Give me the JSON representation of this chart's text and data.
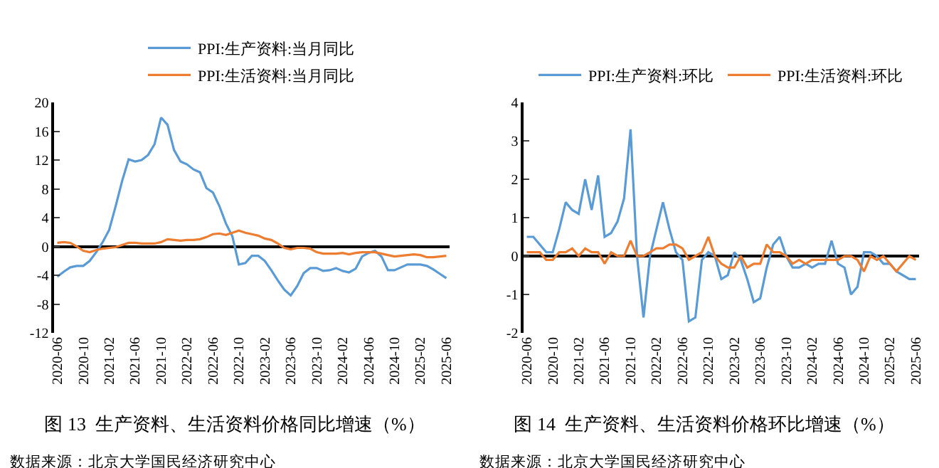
{
  "chart_data": [
    {
      "type": "line",
      "title": "图 13  生产资料、生活资料价格同比增速（%）",
      "annotations": [
        "数据来源：北京大学国民经济研究中心"
      ],
      "categories": [
        "2020-06",
        null,
        null,
        null,
        "2020-10",
        null,
        null,
        null,
        "2021-02",
        null,
        null,
        null,
        "2021-06",
        null,
        null,
        null,
        "2021-10",
        null,
        null,
        null,
        "2022-02",
        null,
        null,
        null,
        "2022-06",
        null,
        null,
        null,
        "2022-10",
        null,
        null,
        null,
        "2023-02",
        null,
        null,
        null,
        "2023-06",
        null,
        null,
        null,
        "2023-10",
        null,
        null,
        null,
        "2024-02",
        null,
        null,
        null,
        "2024-06",
        null,
        null,
        null,
        "2024-10",
        null,
        null,
        null,
        "2025-02",
        null,
        null,
        null,
        "2025-06"
      ],
      "ylim": [
        -12,
        20
      ],
      "yticks": [
        -12,
        -8,
        -4,
        0,
        4,
        8,
        12,
        16,
        20
      ],
      "legend": "top",
      "series": [
        {
          "name": "PPI:生产资料:当月同比",
          "color": "#5b9bd5",
          "values": [
            -4.2,
            -3.5,
            -2.9,
            -2.7,
            -2.7,
            -2.0,
            -0.8,
            0.6,
            2.3,
            5.6,
            9.1,
            12.1,
            11.8,
            12.0,
            12.7,
            14.2,
            17.9,
            16.9,
            13.4,
            11.8,
            11.4,
            10.7,
            10.3,
            8.1,
            7.5,
            5.6,
            3.2,
            1.4,
            -2.5,
            -2.3,
            -1.3,
            -1.3,
            -2.0,
            -3.3,
            -4.7,
            -6.0,
            -6.8,
            -5.5,
            -3.7,
            -3.0,
            -3.0,
            -3.4,
            -3.3,
            -3.0,
            -3.4,
            -3.6,
            -3.1,
            -1.4,
            -0.9,
            -0.6,
            -1.4,
            -3.3,
            -3.3,
            -2.9,
            -2.5,
            -2.5,
            -2.5,
            -2.7,
            -3.2,
            -3.8,
            -4.4
          ]
        },
        {
          "name": "PPI:生活资料:当月同比",
          "color": "#ed7d31",
          "values": [
            0.5,
            0.6,
            0.5,
            0.0,
            -0.6,
            -0.8,
            -0.5,
            -0.3,
            -0.2,
            -0.1,
            0.2,
            0.5,
            0.5,
            0.4,
            0.4,
            0.4,
            0.6,
            1.0,
            0.9,
            0.8,
            0.9,
            0.9,
            1.0,
            1.3,
            1.7,
            1.8,
            1.6,
            1.9,
            2.2,
            1.9,
            1.7,
            1.5,
            1.1,
            0.9,
            0.4,
            -0.2,
            -0.4,
            -0.2,
            -0.2,
            -0.3,
            -0.8,
            -1.0,
            -1.0,
            -1.0,
            -0.9,
            -1.1,
            -0.9,
            -0.8,
            -0.8,
            -0.8,
            -1.0,
            -1.2,
            -1.4,
            -1.3,
            -1.2,
            -1.1,
            -1.2,
            -1.5,
            -1.5,
            -1.4,
            -1.3
          ]
        }
      ]
    },
    {
      "type": "line",
      "title": "图 14  生产资料、生活资料价格环比增速（%）",
      "annotations": [
        "数据来源：北京大学国民经济研究中心"
      ],
      "categories": [
        "2020-06",
        null,
        null,
        null,
        "2020-10",
        null,
        null,
        null,
        "2021-02",
        null,
        null,
        null,
        "2021-06",
        null,
        null,
        null,
        "2021-10",
        null,
        null,
        null,
        "2022-02",
        null,
        null,
        null,
        "2022-06",
        null,
        null,
        null,
        "2022-10",
        null,
        null,
        null,
        "2023-02",
        null,
        null,
        null,
        "2023-06",
        null,
        null,
        null,
        "2023-10",
        null,
        null,
        null,
        "2024-02",
        null,
        null,
        null,
        "2024-06",
        null,
        null,
        null,
        "2024-10",
        null,
        null,
        null,
        "2025-02",
        null,
        null,
        null,
        "2025-06"
      ],
      "ylim": [
        -2,
        4
      ],
      "yticks": [
        -2,
        -1,
        0,
        1,
        2,
        3,
        4
      ],
      "legend": "top",
      "series": [
        {
          "name": "PPI:生产资料:环比",
          "color": "#5b9bd5",
          "values": [
            0.5,
            0.5,
            0.3,
            0.1,
            0.1,
            0.7,
            1.4,
            1.2,
            1.1,
            2.0,
            1.2,
            2.1,
            0.5,
            0.6,
            0.9,
            1.5,
            3.3,
            0.0,
            -1.6,
            0.0,
            0.7,
            1.4,
            0.7,
            0.1,
            -0.1,
            -1.7,
            -1.6,
            -0.1,
            0.1,
            0.0,
            -0.6,
            -0.5,
            0.1,
            -0.1,
            -0.6,
            -1.2,
            -1.1,
            -0.3,
            0.3,
            0.5,
            0.0,
            -0.3,
            -0.3,
            -0.2,
            -0.3,
            -0.2,
            -0.2,
            0.4,
            -0.2,
            -0.3,
            -1.0,
            -0.8,
            0.1,
            0.1,
            0.0,
            -0.2,
            -0.2,
            -0.4,
            -0.5,
            -0.6,
            -0.6
          ]
        },
        {
          "name": "PPI:生活资料:环比",
          "color": "#ed7d31",
          "values": [
            0.1,
            0.1,
            0.1,
            -0.1,
            -0.1,
            0.1,
            0.1,
            0.2,
            0.0,
            0.2,
            0.1,
            0.1,
            -0.2,
            0.1,
            0.0,
            0.0,
            0.4,
            0.0,
            0.0,
            0.1,
            0.2,
            0.2,
            0.3,
            0.3,
            0.2,
            -0.1,
            0.0,
            0.1,
            0.5,
            0.0,
            -0.2,
            -0.3,
            -0.3,
            0.0,
            -0.3,
            -0.2,
            -0.2,
            0.3,
            0.1,
            0.1,
            0.0,
            -0.2,
            -0.1,
            -0.2,
            -0.1,
            -0.1,
            -0.1,
            -0.1,
            -0.1,
            0.0,
            0.0,
            -0.1,
            -0.4,
            0.0,
            -0.1,
            0.0,
            -0.2,
            -0.4,
            -0.2,
            0.0,
            -0.1
          ]
        }
      ]
    }
  ]
}
